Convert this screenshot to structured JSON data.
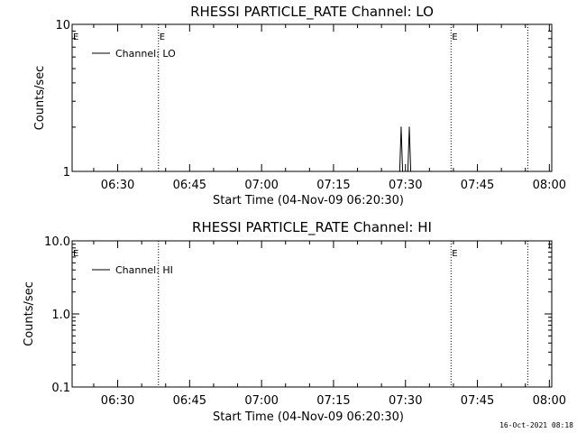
{
  "chart_data": [
    {
      "type": "line",
      "title": "RHESSI PARTICLE_RATE Channel: LO",
      "xlabel": "Start Time (04-Nov-09 06:20:30)",
      "ylabel": "Counts/sec",
      "y_scale": "log",
      "ylim": [
        1,
        10
      ],
      "y_ticks": [
        "1",
        "10"
      ],
      "xlim": [
        "06:20:30",
        "08:00:30"
      ],
      "x_ticks": [
        "06:30",
        "06:45",
        "07:00",
        "07:15",
        "07:30",
        "07:45",
        "08:00"
      ],
      "markers": [
        {
          "time": "06:38:30",
          "label": "E",
          "show_label": true
        },
        {
          "time": "07:39:30",
          "label": "E",
          "show_label": true
        },
        {
          "time": "07:55:30",
          "label": "",
          "show_label": false
        }
      ],
      "series": [
        {
          "name": "Channel: LO",
          "points": [
            {
              "x": "07:28:48",
              "y": 1
            },
            {
              "x": "07:29:06",
              "y": 2
            },
            {
              "x": "07:29:24",
              "y": 1
            },
            {
              "x": "07:30:30",
              "y": 1
            },
            {
              "x": "07:30:48",
              "y": 2
            },
            {
              "x": "07:31:06",
              "y": 1
            }
          ]
        }
      ]
    },
    {
      "type": "line",
      "title": "RHESSI PARTICLE_RATE Channel: HI",
      "xlabel": "Start Time (04-Nov-09 06:20:30)",
      "ylabel": "Counts/sec",
      "y_scale": "log",
      "ylim": [
        0.1,
        10
      ],
      "y_ticks": [
        "0.1",
        "1.0",
        "10.0"
      ],
      "xlim": [
        "06:20:30",
        "08:00:30"
      ],
      "x_ticks": [
        "06:30",
        "06:45",
        "07:00",
        "07:15",
        "07:30",
        "07:45",
        "08:00"
      ],
      "markers": [
        {
          "time": "06:38:30",
          "label": "",
          "show_label": false
        },
        {
          "time": "07:39:30",
          "label": "E",
          "show_label": true
        },
        {
          "time": "07:55:30",
          "label": "",
          "show_label": false
        }
      ],
      "series": [
        {
          "name": "Channel: HI",
          "points": []
        }
      ]
    }
  ],
  "edge_label": "E",
  "footer": "16-Oct-2021 08:18"
}
